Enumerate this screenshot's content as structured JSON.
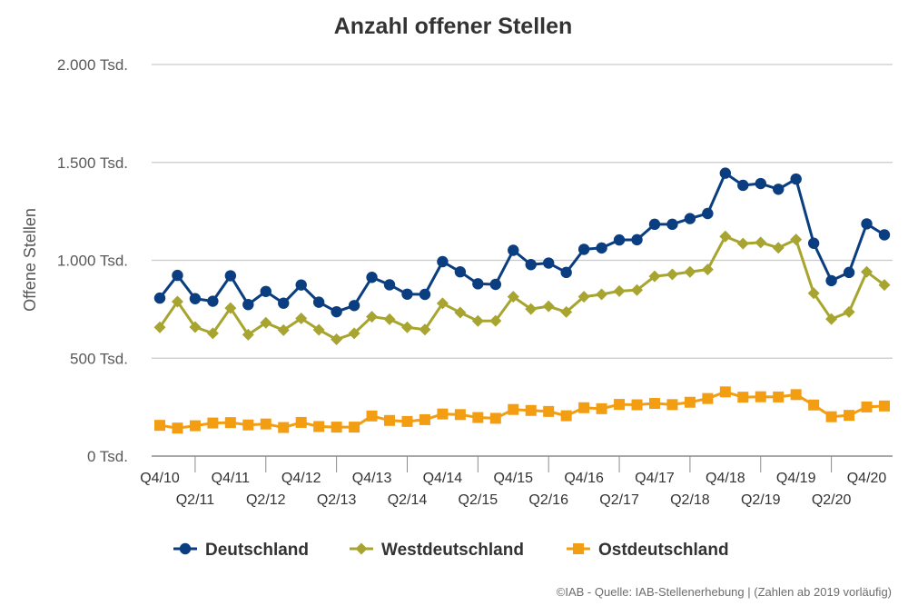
{
  "chart_data": {
    "type": "line",
    "title": "Anzahl offener Stellen",
    "ylabel": "Offene Stellen",
    "xlabel": "",
    "ylim": [
      0,
      2000
    ],
    "yticks": [
      {
        "value": 0,
        "label": "0 Tsd."
      },
      {
        "value": 500,
        "label": "500 Tsd."
      },
      {
        "value": 1000,
        "label": "1.000 Tsd."
      },
      {
        "value": 1500,
        "label": "1.500 Tsd."
      },
      {
        "value": 2000,
        "label": "2.000 Tsd."
      }
    ],
    "grid": true,
    "legend_position": "bottom",
    "categories": [
      "Q4/10",
      "Q1/11",
      "Q2/11",
      "Q3/11",
      "Q4/11",
      "Q1/12",
      "Q2/12",
      "Q3/12",
      "Q4/12",
      "Q1/13",
      "Q2/13",
      "Q3/13",
      "Q4/13",
      "Q1/14",
      "Q2/14",
      "Q3/14",
      "Q4/14",
      "Q1/15",
      "Q2/15",
      "Q3/15",
      "Q4/15",
      "Q1/16",
      "Q2/16",
      "Q3/16",
      "Q4/16",
      "Q1/17",
      "Q2/17",
      "Q3/17",
      "Q4/17",
      "Q1/18",
      "Q2/18",
      "Q3/18",
      "Q4/18",
      "Q1/19",
      "Q2/19",
      "Q3/19",
      "Q4/19",
      "Q1/20",
      "Q2/20",
      "Q3/20",
      "Q4/20",
      "Q1/21"
    ],
    "xtick_labels": [
      {
        "index": 0,
        "label": "Q4/10",
        "row": 0
      },
      {
        "index": 2,
        "label": "Q2/11",
        "row": 1
      },
      {
        "index": 4,
        "label": "Q4/11",
        "row": 0
      },
      {
        "index": 6,
        "label": "Q2/12",
        "row": 1
      },
      {
        "index": 8,
        "label": "Q4/12",
        "row": 0
      },
      {
        "index": 10,
        "label": "Q2/13",
        "row": 1
      },
      {
        "index": 12,
        "label": "Q4/13",
        "row": 0
      },
      {
        "index": 14,
        "label": "Q2/14",
        "row": 1
      },
      {
        "index": 16,
        "label": "Q4/14",
        "row": 0
      },
      {
        "index": 18,
        "label": "Q2/15",
        "row": 1
      },
      {
        "index": 20,
        "label": "Q4/15",
        "row": 0
      },
      {
        "index": 22,
        "label": "Q2/16",
        "row": 1
      },
      {
        "index": 24,
        "label": "Q4/16",
        "row": 0
      },
      {
        "index": 26,
        "label": "Q2/17",
        "row": 1
      },
      {
        "index": 28,
        "label": "Q4/17",
        "row": 0
      },
      {
        "index": 30,
        "label": "Q2/18",
        "row": 1
      },
      {
        "index": 32,
        "label": "Q4/18",
        "row": 0
      },
      {
        "index": 34,
        "label": "Q2/19",
        "row": 1
      },
      {
        "index": 36,
        "label": "Q4/19",
        "row": 0
      },
      {
        "index": 38,
        "label": "Q2/20",
        "row": 1
      },
      {
        "index": 40,
        "label": "Q4/20",
        "row": 0
      }
    ],
    "series": [
      {
        "name": "Deutschland",
        "color": "#0b3e80",
        "marker": "circle",
        "values": [
          807,
          923,
          804,
          791,
          921,
          774,
          841,
          781,
          874,
          786,
          737,
          769,
          913,
          875,
          827,
          826,
          993,
          941,
          880,
          877,
          1051,
          978,
          986,
          938,
          1056,
          1063,
          1104,
          1105,
          1184,
          1184,
          1213,
          1239,
          1445,
          1383,
          1392,
          1363,
          1415,
          1087,
          896,
          938,
          1186,
          1130
        ]
      },
      {
        "name": "Westdeutschland",
        "color": "#a7a52f",
        "marker": "diamond",
        "values": [
          658,
          789,
          659,
          627,
          756,
          620,
          681,
          643,
          703,
          645,
          596,
          627,
          712,
          699,
          658,
          646,
          780,
          733,
          690,
          691,
          814,
          751,
          765,
          736,
          814,
          826,
          843,
          848,
          918,
          928,
          941,
          953,
          1122,
          1085,
          1091,
          1064,
          1106,
          832,
          700,
          736,
          941,
          874
        ]
      },
      {
        "name": "Ostdeutschland",
        "color": "#f39d12",
        "marker": "square",
        "values": [
          157,
          143,
          155,
          169,
          171,
          159,
          164,
          146,
          172,
          151,
          148,
          148,
          205,
          182,
          177,
          186,
          215,
          212,
          197,
          193,
          238,
          233,
          228,
          206,
          247,
          242,
          264,
          262,
          269,
          263,
          275,
          294,
          328,
          301,
          303,
          302,
          314,
          261,
          201,
          208,
          251,
          256
        ]
      }
    ]
  },
  "source_text": "©IAB - Quelle: IAB-Stellenerhebung | (Zahlen ab 2019 vorläufig)"
}
